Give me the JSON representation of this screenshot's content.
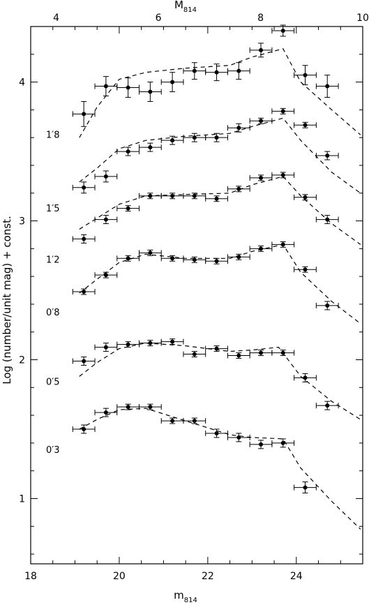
{
  "chart_data": {
    "type": "scatter",
    "x_axis": {
      "label_main": "m",
      "label_sub": "814",
      "range": [
        18,
        25.5
      ],
      "ticks": [
        18,
        20,
        22,
        24
      ]
    },
    "top_axis": {
      "label_main": "M",
      "label_sub": "814",
      "range": [
        3.5,
        10
      ],
      "ticks": [
        4,
        6,
        8,
        10
      ]
    },
    "y_axis": {
      "label": "Log (number/unit mag) + const.",
      "range": [
        0.53,
        4.4
      ],
      "ticks": [
        1,
        2,
        3,
        4
      ]
    },
    "x_error": 0.25,
    "series": [
      {
        "name": "1.8",
        "label": "1′8",
        "points": [
          [
            19.2,
            3.77,
            0.09
          ],
          [
            19.7,
            3.97,
            0.07
          ],
          [
            20.2,
            3.96,
            0.07
          ],
          [
            20.7,
            3.93,
            0.07
          ],
          [
            21.2,
            4.0,
            0.07
          ],
          [
            21.7,
            4.08,
            0.06
          ],
          [
            22.2,
            4.07,
            0.06
          ],
          [
            22.7,
            4.08,
            0.06
          ],
          [
            23.2,
            4.23,
            0.05
          ],
          [
            23.7,
            4.37,
            0.04
          ],
          [
            24.2,
            4.05,
            0.07
          ],
          [
            24.7,
            3.97,
            0.08
          ]
        ],
        "model": [
          [
            19.1,
            3.6
          ],
          [
            19.5,
            3.82
          ],
          [
            20.0,
            4.02
          ],
          [
            20.6,
            4.07
          ],
          [
            21.5,
            4.1
          ],
          [
            22.5,
            4.12
          ],
          [
            23.0,
            4.18
          ],
          [
            23.7,
            4.24
          ],
          [
            24.1,
            4.0
          ],
          [
            24.8,
            3.8
          ],
          [
            25.45,
            3.62
          ]
        ]
      },
      {
        "name": "1.5",
        "label": "1′5",
        "points": [
          [
            19.2,
            3.24,
            0.04
          ],
          [
            19.7,
            3.32,
            0.04
          ],
          [
            20.2,
            3.5,
            0.03
          ],
          [
            20.7,
            3.53,
            0.03
          ],
          [
            21.2,
            3.58,
            0.03
          ],
          [
            21.7,
            3.6,
            0.03
          ],
          [
            22.2,
            3.6,
            0.03
          ],
          [
            22.7,
            3.67,
            0.03
          ],
          [
            23.2,
            3.72,
            0.02
          ],
          [
            23.7,
            3.79,
            0.02
          ],
          [
            24.2,
            3.69,
            0.02
          ],
          [
            24.7,
            3.47,
            0.03
          ]
        ],
        "model": [
          [
            19.1,
            3.28
          ],
          [
            19.5,
            3.38
          ],
          [
            20.0,
            3.52
          ],
          [
            20.6,
            3.58
          ],
          [
            21.5,
            3.61
          ],
          [
            22.5,
            3.63
          ],
          [
            23.0,
            3.68
          ],
          [
            23.7,
            3.74
          ],
          [
            24.1,
            3.58
          ],
          [
            24.8,
            3.35
          ],
          [
            25.45,
            3.2
          ]
        ]
      },
      {
        "name": "1.2",
        "label": "1′2",
        "points": [
          [
            19.2,
            2.87,
            0.03
          ],
          [
            19.7,
            3.01,
            0.03
          ],
          [
            20.2,
            3.09,
            0.02
          ],
          [
            20.7,
            3.18,
            0.02
          ],
          [
            21.2,
            3.18,
            0.02
          ],
          [
            21.7,
            3.18,
            0.02
          ],
          [
            22.2,
            3.16,
            0.02
          ],
          [
            22.7,
            3.23,
            0.02
          ],
          [
            23.2,
            3.31,
            0.02
          ],
          [
            23.7,
            3.33,
            0.02
          ],
          [
            24.2,
            3.17,
            0.02
          ],
          [
            24.7,
            3.01,
            0.03
          ]
        ],
        "model": [
          [
            19.1,
            2.94
          ],
          [
            19.5,
            3.02
          ],
          [
            20.0,
            3.12
          ],
          [
            20.6,
            3.18
          ],
          [
            21.5,
            3.19
          ],
          [
            22.5,
            3.2
          ],
          [
            23.0,
            3.26
          ],
          [
            23.7,
            3.32
          ],
          [
            24.1,
            3.18
          ],
          [
            24.8,
            2.98
          ],
          [
            25.45,
            2.83
          ]
        ]
      },
      {
        "name": "0.8",
        "label": "0′8",
        "points": [
          [
            19.2,
            2.49,
            0.02
          ],
          [
            19.7,
            2.61,
            0.02
          ],
          [
            20.2,
            2.73,
            0.02
          ],
          [
            20.7,
            2.77,
            0.02
          ],
          [
            21.2,
            2.73,
            0.02
          ],
          [
            21.7,
            2.72,
            0.02
          ],
          [
            22.2,
            2.71,
            0.02
          ],
          [
            22.7,
            2.74,
            0.02
          ],
          [
            23.2,
            2.8,
            0.02
          ],
          [
            23.7,
            2.83,
            0.02
          ],
          [
            24.2,
            2.65,
            0.02
          ],
          [
            24.7,
            2.39,
            0.03
          ]
        ],
        "model": [
          [
            19.1,
            2.48
          ],
          [
            19.5,
            2.58
          ],
          [
            20.0,
            2.7
          ],
          [
            20.6,
            2.76
          ],
          [
            21.5,
            2.73
          ],
          [
            22.5,
            2.73
          ],
          [
            23.0,
            2.78
          ],
          [
            23.7,
            2.83
          ],
          [
            24.1,
            2.63
          ],
          [
            24.8,
            2.42
          ],
          [
            25.45,
            2.26
          ]
        ]
      },
      {
        "name": "0.5",
        "label": "0′5",
        "points": [
          [
            19.2,
            1.99,
            0.03
          ],
          [
            19.7,
            2.09,
            0.03
          ],
          [
            20.2,
            2.11,
            0.02
          ],
          [
            20.7,
            2.12,
            0.02
          ],
          [
            21.2,
            2.13,
            0.02
          ],
          [
            21.7,
            2.04,
            0.02
          ],
          [
            22.2,
            2.08,
            0.02
          ],
          [
            22.7,
            2.03,
            0.02
          ],
          [
            23.2,
            2.05,
            0.02
          ],
          [
            23.7,
            2.05,
            0.02
          ],
          [
            24.2,
            1.87,
            0.03
          ],
          [
            24.7,
            1.67,
            0.03
          ]
        ],
        "model": [
          [
            19.1,
            1.88
          ],
          [
            19.5,
            1.98
          ],
          [
            20.0,
            2.08
          ],
          [
            20.6,
            2.12
          ],
          [
            21.5,
            2.1
          ],
          [
            22.5,
            2.06
          ],
          [
            23.0,
            2.07
          ],
          [
            23.6,
            2.09
          ],
          [
            24.1,
            1.88
          ],
          [
            24.8,
            1.7
          ],
          [
            25.45,
            1.57
          ]
        ]
      },
      {
        "name": "0.3",
        "label": "0′3",
        "points": [
          [
            19.2,
            1.5,
            0.03
          ],
          [
            19.7,
            1.62,
            0.03
          ],
          [
            20.2,
            1.66,
            0.02
          ],
          [
            20.7,
            1.66,
            0.02
          ],
          [
            21.2,
            1.56,
            0.02
          ],
          [
            21.7,
            1.56,
            0.02
          ],
          [
            22.2,
            1.47,
            0.03
          ],
          [
            22.7,
            1.44,
            0.03
          ],
          [
            23.2,
            1.39,
            0.03
          ],
          [
            23.7,
            1.4,
            0.03
          ],
          [
            24.2,
            1.08,
            0.04
          ]
        ],
        "model": [
          [
            19.1,
            1.5
          ],
          [
            19.5,
            1.57
          ],
          [
            20.0,
            1.64
          ],
          [
            20.6,
            1.65
          ],
          [
            21.5,
            1.56
          ],
          [
            22.5,
            1.46
          ],
          [
            23.0,
            1.44
          ],
          [
            23.7,
            1.43
          ],
          [
            24.1,
            1.22
          ],
          [
            24.8,
            0.98
          ],
          [
            25.45,
            0.78
          ]
        ]
      }
    ]
  }
}
